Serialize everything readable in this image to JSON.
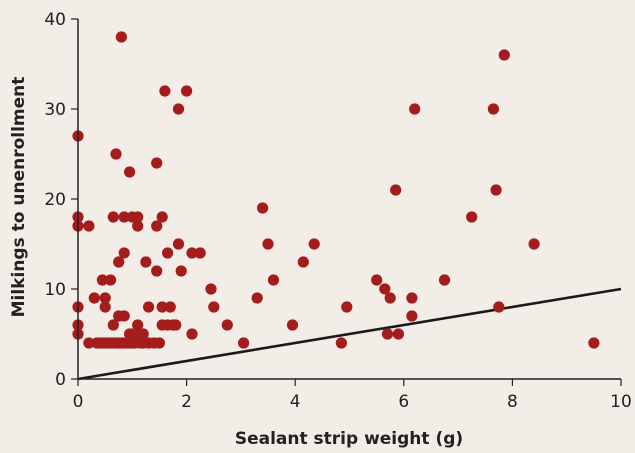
{
  "chart_data": {
    "type": "scatter",
    "title": "",
    "xlabel": "Sealant strip weight (g)",
    "ylabel": "Milkings to unenrollment",
    "xlim": [
      0,
      10
    ],
    "ylim": [
      0,
      40
    ],
    "xticks": [
      0,
      2,
      4,
      6,
      8,
      10
    ],
    "yticks": [
      0,
      10,
      20,
      30,
      40
    ],
    "grid": false,
    "legend": "none",
    "point_color": "#a51c1c",
    "line_color": "#1a1a1a",
    "reference_line": {
      "x": [
        0,
        10
      ],
      "y": [
        0,
        10
      ]
    },
    "points": [
      [
        0.0,
        27
      ],
      [
        0.0,
        18
      ],
      [
        0.0,
        17
      ],
      [
        0.0,
        8
      ],
      [
        0.0,
        6
      ],
      [
        0.0,
        5
      ],
      [
        0.2,
        17
      ],
      [
        0.2,
        4
      ],
      [
        0.3,
        9
      ],
      [
        0.35,
        4
      ],
      [
        0.4,
        4
      ],
      [
        0.45,
        11
      ],
      [
        0.45,
        4
      ],
      [
        0.5,
        9
      ],
      [
        0.5,
        8
      ],
      [
        0.5,
        4
      ],
      [
        0.55,
        4
      ],
      [
        0.6,
        11
      ],
      [
        0.6,
        4
      ],
      [
        0.65,
        18
      ],
      [
        0.65,
        6
      ],
      [
        0.65,
        4
      ],
      [
        0.7,
        25
      ],
      [
        0.7,
        4
      ],
      [
        0.75,
        13
      ],
      [
        0.75,
        7
      ],
      [
        0.75,
        4
      ],
      [
        0.8,
        38
      ],
      [
        0.8,
        4
      ],
      [
        0.85,
        14
      ],
      [
        0.85,
        18
      ],
      [
        0.85,
        7
      ],
      [
        0.85,
        4
      ],
      [
        0.9,
        4
      ],
      [
        0.95,
        23
      ],
      [
        0.95,
        5
      ],
      [
        0.95,
        4
      ],
      [
        1.0,
        18
      ],
      [
        1.0,
        5
      ],
      [
        1.0,
        4
      ],
      [
        1.05,
        5
      ],
      [
        1.05,
        4
      ],
      [
        1.1,
        18
      ],
      [
        1.1,
        17
      ],
      [
        1.1,
        6
      ],
      [
        1.1,
        5
      ],
      [
        1.15,
        4
      ],
      [
        1.2,
        5
      ],
      [
        1.2,
        4
      ],
      [
        1.25,
        13
      ],
      [
        1.3,
        8
      ],
      [
        1.3,
        4
      ],
      [
        1.4,
        4
      ],
      [
        1.45,
        24
      ],
      [
        1.45,
        17
      ],
      [
        1.45,
        12
      ],
      [
        1.5,
        4
      ],
      [
        1.55,
        18
      ],
      [
        1.55,
        8
      ],
      [
        1.55,
        6
      ],
      [
        1.6,
        32
      ],
      [
        1.65,
        14
      ],
      [
        1.65,
        6
      ],
      [
        1.7,
        8
      ],
      [
        1.75,
        6
      ],
      [
        1.8,
        6
      ],
      [
        1.85,
        15
      ],
      [
        1.85,
        30
      ],
      [
        1.9,
        12
      ],
      [
        2.0,
        32
      ],
      [
        2.1,
        14
      ],
      [
        2.1,
        5
      ],
      [
        2.25,
        14
      ],
      [
        2.45,
        10
      ],
      [
        2.5,
        8
      ],
      [
        2.75,
        6
      ],
      [
        3.05,
        4
      ],
      [
        3.3,
        9
      ],
      [
        3.4,
        19
      ],
      [
        3.5,
        15
      ],
      [
        3.6,
        11
      ],
      [
        3.95,
        6
      ],
      [
        4.15,
        13
      ],
      [
        4.35,
        15
      ],
      [
        4.85,
        4
      ],
      [
        4.95,
        8
      ],
      [
        5.5,
        11
      ],
      [
        5.65,
        10
      ],
      [
        5.7,
        5
      ],
      [
        5.75,
        9
      ],
      [
        5.85,
        21
      ],
      [
        5.9,
        5
      ],
      [
        6.15,
        9
      ],
      [
        6.15,
        7
      ],
      [
        6.2,
        30
      ],
      [
        6.75,
        11
      ],
      [
        7.25,
        18
      ],
      [
        7.65,
        30
      ],
      [
        7.7,
        21
      ],
      [
        7.75,
        8
      ],
      [
        7.85,
        36
      ],
      [
        8.4,
        15
      ],
      [
        9.5,
        4
      ]
    ]
  }
}
